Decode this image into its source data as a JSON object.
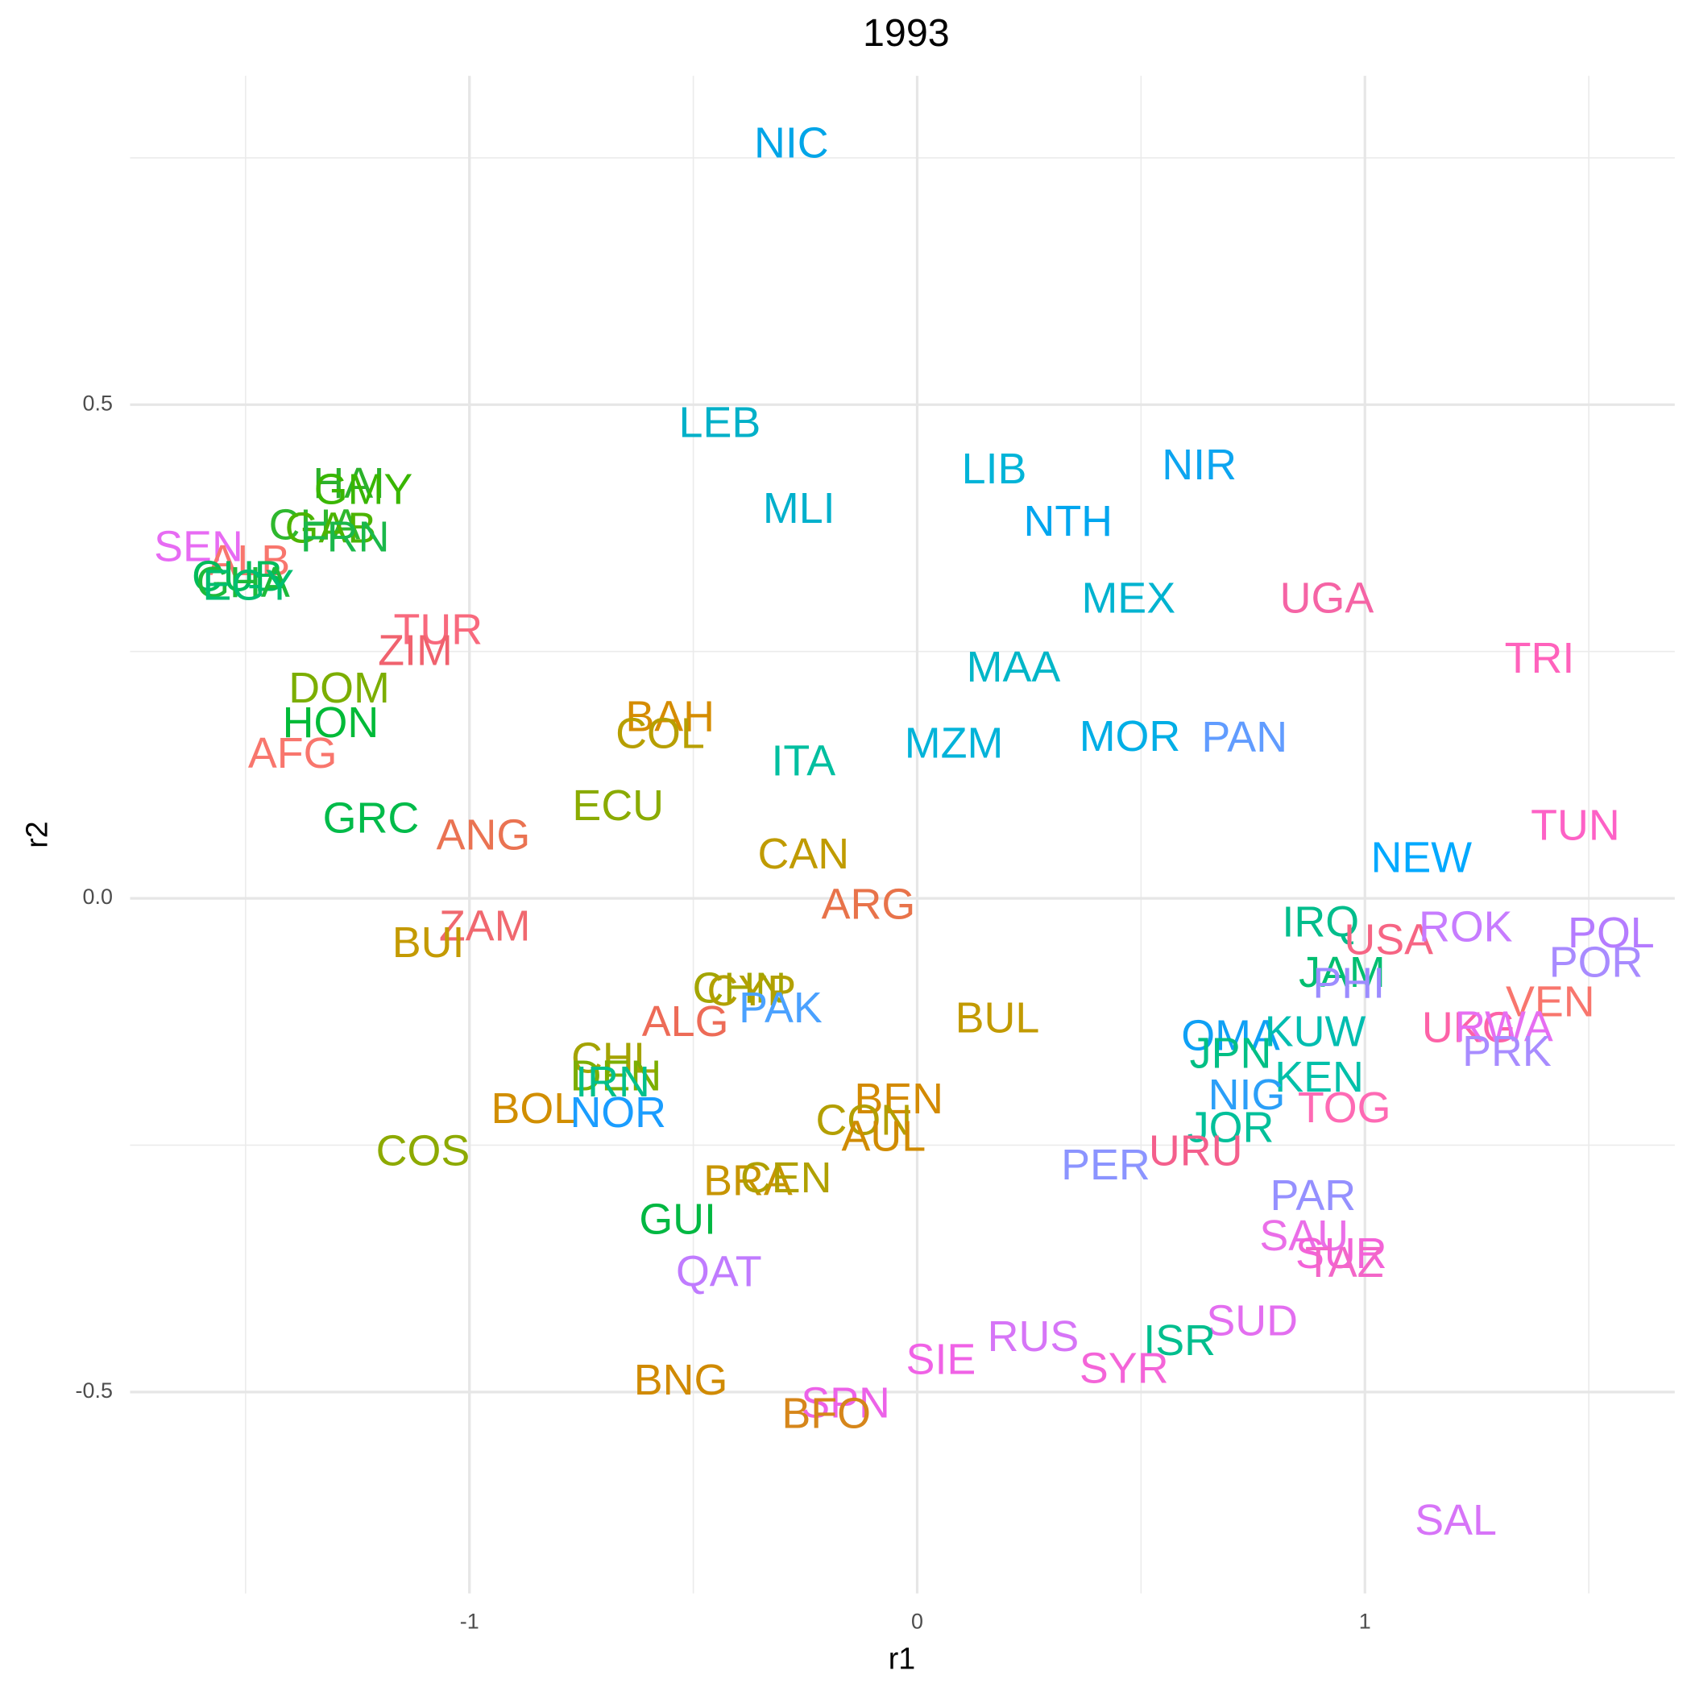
{
  "chart_data": {
    "type": "scatter",
    "title": "1993",
    "x_label": "r1",
    "y_label": "r2",
    "xlim": [
      -1.758,
      1.692
    ],
    "ylim": [
      -0.704,
      0.833
    ],
    "xticks": [
      -1,
      0,
      1
    ],
    "yticks": [
      -0.5,
      {
        "value": 0,
        "label": "0.0"
      },
      0.5
    ],
    "xminor": [
      -1.5,
      -0.5,
      0.5,
      1.5
    ],
    "yminor": [
      -0.25,
      0.25,
      0.75
    ],
    "grid": true,
    "labels": [
      "NIC",
      "LEB",
      "LIB",
      "NIR",
      "MLI",
      "NTH",
      "HAI",
      "GMY",
      "CHA",
      "GAB",
      "FRN",
      "SEN",
      "ALB",
      "CUB",
      "GHA",
      "EGY",
      "TUR",
      "ZIM",
      "DOM",
      "HON",
      "AFG",
      "GRC",
      "ANG",
      "BAH",
      "COL",
      "ECU",
      "ITA",
      "MZM",
      "MAA",
      "MEX",
      "MOR",
      "PAN",
      "UGA",
      "TRI",
      "TUN",
      "NEW",
      "CAN",
      "ARG",
      "ZAM",
      "BUI",
      "IRQ",
      "USA",
      "ROK",
      "POL",
      "POR",
      "JAM",
      "PHI",
      "VEN",
      "CHN",
      "CYP",
      "PAK",
      "ALG",
      "BUL",
      "OMA",
      "KUW",
      "JPN",
      "UKG",
      "RWA",
      "PRK",
      "CHL",
      "DEN",
      "IRN",
      "BOL",
      "NOR",
      "KEN",
      "NIG",
      "TOG",
      "BEN",
      "CON",
      "AUL",
      "JOR",
      "COS",
      "URU",
      "PER",
      "BRA",
      "CEN",
      "PAR",
      "GUI",
      "SAU",
      "SUR",
      "TAZ",
      "QAT",
      "SUD",
      "RUS",
      "ISR",
      "SIE",
      "SYR",
      "BNG",
      "SPN",
      "BFO",
      "SAL"
    ],
    "x": [
      -0.281,
      -0.441,
      0.172,
      0.63,
      -0.264,
      0.337,
      -1.269,
      -1.237,
      -1.346,
      -1.31,
      -1.278,
      -1.605,
      -1.492,
      -1.518,
      -1.506,
      -1.494,
      -1.07,
      -1.121,
      -1.291,
      -1.31,
      -1.395,
      -1.22,
      -0.969,
      -0.552,
      -0.574,
      -0.668,
      -0.254,
      0.082,
      0.215,
      0.472,
      0.475,
      0.731,
      0.915,
      1.39,
      1.47,
      1.126,
      -0.254,
      -0.109,
      -0.966,
      -1.092,
      0.901,
      1.053,
      1.225,
      1.55,
      1.516,
      0.949,
      0.964,
      1.414,
      -0.397,
      -0.37,
      -0.305,
      -0.518,
      0.179,
      0.7,
      0.889,
      0.7,
      1.232,
      1.31,
      1.317,
      -0.676,
      -0.673,
      -0.68,
      -0.855,
      -0.668,
      0.898,
      0.736,
      0.954,
      -0.041,
      -0.119,
      -0.075,
      0.7,
      -1.104,
      0.622,
      0.421,
      -0.378,
      -0.293,
      0.884,
      -0.535,
      0.864,
      0.947,
      0.954,
      -0.443,
      0.748,
      0.259,
      0.586,
      0.053,
      0.462,
      -0.528,
      -0.16,
      -0.203,
      1.203
    ],
    "y": [
      0.762,
      0.479,
      0.432,
      0.436,
      0.392,
      0.379,
      0.417,
      0.411,
      0.375,
      0.372,
      0.363,
      0.353,
      0.339,
      0.323,
      0.317,
      0.314,
      0.269,
      0.248,
      0.21,
      0.175,
      0.144,
      0.078,
      0.061,
      0.181,
      0.164,
      0.091,
      0.136,
      0.154,
      0.231,
      0.301,
      0.161,
      0.16,
      0.301,
      0.24,
      0.071,
      0.038,
      0.042,
      -0.009,
      -0.031,
      -0.048,
      -0.027,
      -0.045,
      -0.032,
      -0.038,
      -0.068,
      -0.078,
      -0.089,
      -0.108,
      -0.094,
      -0.097,
      -0.114,
      -0.128,
      -0.124,
      -0.142,
      -0.138,
      -0.16,
      -0.134,
      -0.133,
      -0.158,
      -0.165,
      -0.183,
      -0.189,
      -0.216,
      -0.22,
      -0.184,
      -0.202,
      -0.215,
      -0.206,
      -0.228,
      -0.244,
      -0.235,
      -0.259,
      -0.259,
      -0.273,
      -0.289,
      -0.286,
      -0.304,
      -0.328,
      -0.345,
      -0.363,
      -0.372,
      -0.381,
      -0.431,
      -0.447,
      -0.451,
      -0.47,
      -0.479,
      -0.491,
      -0.514,
      -0.525,
      -0.633
    ],
    "colors": [
      "#00a5e8",
      "#00b0c8",
      "#00b4d8",
      "#0ca5f0",
      "#00b0cc",
      "#00a6ef",
      "#2bb12b",
      "#39b600",
      "#2eb82e",
      "#4cb400",
      "#1ab84a",
      "#e76bf3",
      "#f8766d",
      "#00bc5a",
      "#1dba3a",
      "#00be70",
      "#f8697d",
      "#f0626e",
      "#7cae00",
      "#00ba38",
      "#f8766d",
      "#00bb4a",
      "#ea7352",
      "#d58c00",
      "#b79f00",
      "#8aab00",
      "#00bfa0",
      "#00b3d9",
      "#00b6c8",
      "#00b3d0",
      "#00aee6",
      "#619cff",
      "#f564a5",
      "#ff62bc",
      "#fd61c6",
      "#00a9ff",
      "#c09b00",
      "#e8734a",
      "#f0686f",
      "#c49a00",
      "#00bd8c",
      "#f66584",
      "#c77cff",
      "#b57bff",
      "#a88bff",
      "#00be70",
      "#9c8cff",
      "#f8766d",
      "#a3a500",
      "#b2a000",
      "#4aa1ff",
      "#ed6b57",
      "#c29a00",
      "#0fa0f5",
      "#00bdb0",
      "#00bf84",
      "#fd62a7",
      "#e66ef2",
      "#a88cff",
      "#a4a300",
      "#7cae00",
      "#00c08b",
      "#d18e00",
      "#1a9dff",
      "#00c0a9",
      "#2b9ff8",
      "#fe6ab4",
      "#d38a00",
      "#b39f00",
      "#d08b00",
      "#00c09a",
      "#8daa00",
      "#f45f8c",
      "#8b94ff",
      "#c79500",
      "#b0a000",
      "#9590ff",
      "#00b842",
      "#ea6ee8",
      "#f363d8",
      "#f366c8",
      "#c07bff",
      "#e36ef0",
      "#d675f7",
      "#00be8e",
      "#f062e6",
      "#f464d8",
      "#d08a00",
      "#ec62e8",
      "#d6861a",
      "#d774f8"
    ]
  }
}
